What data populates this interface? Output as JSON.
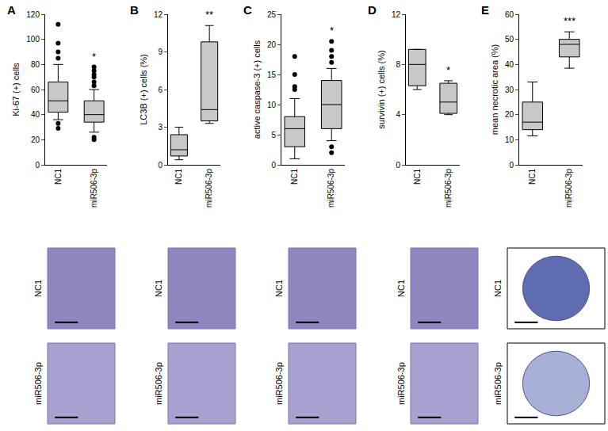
{
  "chart_data": [
    {
      "type": "box",
      "panel": "A",
      "y_label": "Ki-67 (+) cells",
      "categories": [
        "NC1",
        "miR506-3p"
      ],
      "color": "#c8c8c8",
      "boxes": [
        {
          "lower": 36,
          "q1": 42,
          "median": 51,
          "q3": 66,
          "upper": 80,
          "outliers": [
            33,
            29,
            85,
            90,
            97,
            112
          ]
        },
        {
          "lower": 26,
          "q1": 34,
          "median": 40,
          "q3": 51,
          "upper": 60,
          "outliers": [
            22,
            20,
            63,
            66,
            70,
            72,
            75,
            78
          ]
        }
      ],
      "significance": "*",
      "ylim": [
        0,
        120
      ],
      "yticks": [
        0,
        20,
        40,
        60,
        80,
        100,
        120
      ]
    },
    {
      "type": "box",
      "panel": "B",
      "y_label": "LC3B (+) cells (%)",
      "categories": [
        "NC1",
        "miR506-3p"
      ],
      "color": "#c8c8c8",
      "boxes": [
        {
          "lower": 0.4,
          "q1": 0.7,
          "median": 1.2,
          "q3": 2.4,
          "upper": 3.0,
          "outliers": []
        },
        {
          "lower": 3.3,
          "q1": 3.5,
          "median": 4.4,
          "q3": 9.8,
          "upper": 11.1,
          "outliers": []
        }
      ],
      "significance": "**",
      "ylim": [
        0,
        12
      ],
      "yticks": [
        0,
        3,
        6,
        9,
        12
      ]
    },
    {
      "type": "box",
      "panel": "C",
      "y_label": "active caspase-3 (+) cells",
      "categories": [
        "NC1",
        "miR506-3p"
      ],
      "color": "#c8c8c8",
      "boxes": [
        {
          "lower": 1,
          "q1": 3,
          "median": 6,
          "q3": 8,
          "upper": 11,
          "outliers": [
            12.5,
            13,
            15,
            18
          ]
        },
        {
          "lower": 4,
          "q1": 6,
          "median": 10,
          "q3": 14,
          "upper": 16,
          "outliers": [
            2,
            3,
            17,
            18,
            19,
            20.5
          ]
        }
      ],
      "significance": "*",
      "ylim": [
        0,
        25
      ],
      "yticks": [
        0,
        5,
        10,
        15,
        20,
        25
      ]
    },
    {
      "type": "box",
      "panel": "D",
      "y_label": "survivin (+) cells (%)",
      "categories": [
        "NC1",
        "miR506-3p"
      ],
      "color": "#c8c8c8",
      "boxes": [
        {
          "lower": 6,
          "q1": 6.3,
          "median": 8,
          "q3": 9.2,
          "upper": 9.2,
          "outliers": []
        },
        {
          "lower": 4,
          "q1": 4.1,
          "median": 5,
          "q3": 6.5,
          "upper": 6.7,
          "outliers": []
        }
      ],
      "significance": "*",
      "ylim": [
        0,
        12
      ],
      "yticks": [
        0,
        4,
        8,
        12
      ]
    },
    {
      "type": "box",
      "panel": "E",
      "y_label": "mean necrotic area (%)",
      "categories": [
        "NC1",
        "miR506-3p"
      ],
      "color": "#c8c8c8",
      "boxes": [
        {
          "lower": 11.5,
          "q1": 14,
          "median": 17,
          "q3": 25,
          "upper": 33,
          "outliers": []
        },
        {
          "lower": 38.5,
          "q1": 43,
          "median": 48,
          "q3": 50,
          "upper": 53,
          "outliers": []
        }
      ],
      "significance": "***",
      "ylim": [
        0,
        60
      ],
      "yticks": [
        0,
        10,
        20,
        30,
        40,
        50,
        60
      ]
    }
  ],
  "image_rows": [
    "NC1",
    "miR506-3p"
  ]
}
